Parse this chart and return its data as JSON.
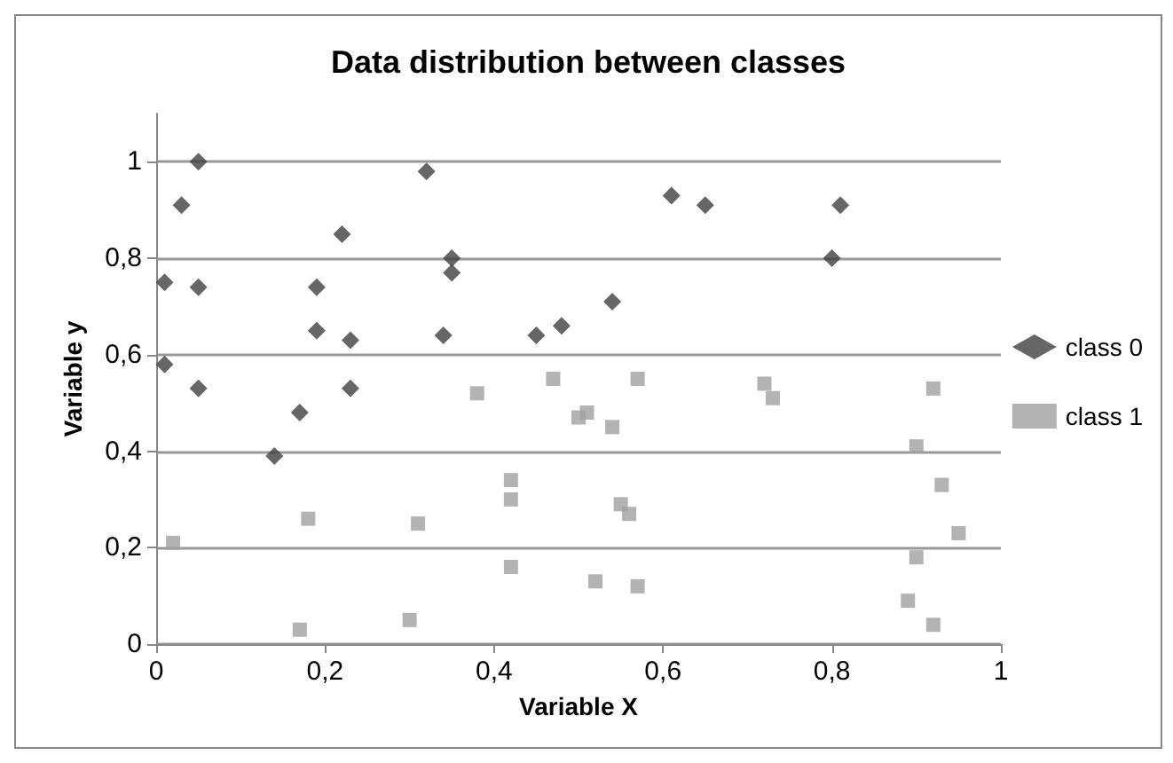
{
  "chart_data": {
    "type": "scatter",
    "title": "Data distribution between classes",
    "xlabel": "Variable X",
    "ylabel": "Variable y",
    "xlim": [
      0,
      1
    ],
    "ylim": [
      0,
      1.1
    ],
    "xticks": [
      0,
      {
        "value": 0.2,
        "label": "0,2"
      },
      {
        "value": 0.4,
        "label": "0,4"
      },
      {
        "value": 0.6,
        "label": "0,6"
      },
      {
        "value": 0.8,
        "label": "0,8"
      },
      1
    ],
    "yticks": [
      0,
      {
        "value": 0.2,
        "label": "0,2"
      },
      {
        "value": 0.4,
        "label": "0,4"
      },
      {
        "value": 0.6,
        "label": "0,6"
      },
      {
        "value": 0.8,
        "label": "0,8"
      },
      1
    ],
    "grid": "y",
    "legend": "right",
    "series": [
      {
        "name": "class 0",
        "color": "#404040",
        "marker": "diamond",
        "x": [
          0.01,
          0.01,
          0.03,
          0.05,
          0.05,
          0.05,
          0.14,
          0.17,
          0.19,
          0.19,
          0.22,
          0.23,
          0.23,
          0.32,
          0.35,
          0.35,
          0.34,
          0.45,
          0.48,
          0.54,
          0.61,
          0.65,
          0.8,
          0.81
        ],
        "values": [
          0.58,
          0.75,
          0.91,
          1.0,
          0.74,
          0.53,
          0.39,
          0.48,
          0.74,
          0.65,
          0.85,
          0.63,
          0.53,
          0.98,
          0.8,
          0.77,
          0.64,
          0.64,
          0.66,
          0.71,
          0.93,
          0.91,
          0.8,
          0.91
        ]
      },
      {
        "name": "class 1",
        "color": "#a0a0a0",
        "marker": "square",
        "x": [
          0.02,
          0.18,
          0.17,
          0.31,
          0.3,
          0.38,
          0.42,
          0.42,
          0.42,
          0.47,
          0.5,
          0.57,
          0.51,
          0.54,
          0.55,
          0.56,
          0.52,
          0.57,
          0.72,
          0.73,
          0.92,
          0.9,
          0.93,
          0.95,
          0.9,
          0.89,
          0.92
        ],
        "values": [
          0.21,
          0.26,
          0.03,
          0.25,
          0.05,
          0.52,
          0.16,
          0.3,
          0.34,
          0.55,
          0.47,
          0.55,
          0.48,
          0.45,
          0.29,
          0.27,
          0.13,
          0.12,
          0.54,
          0.51,
          0.53,
          0.41,
          0.33,
          0.23,
          0.18,
          0.09,
          0.04
        ]
      }
    ]
  }
}
